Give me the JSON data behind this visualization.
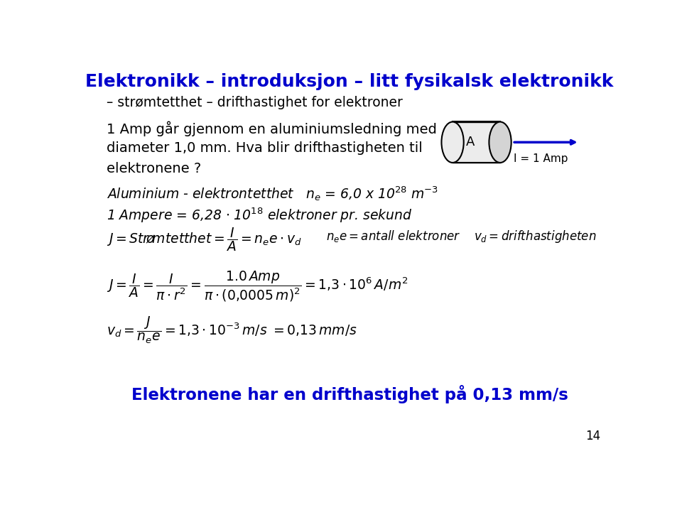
{
  "title": "Elektronikk – introduksjon – litt fysikalsk elektronikk",
  "title_color": "#0000CC",
  "subtitle": "– strømtetthet – drifthastighet for elektroner",
  "line1": "1 Amp går gjennom en aluminiumsledning med",
  "line2": "diameter 1,0 mm. Hva blir drifthastigheten til",
  "line3": "elektronene ?",
  "bg_color": "#FFFFFF",
  "text_color": "#000000",
  "blue_color": "#0000CC",
  "page_number": "14",
  "conclusion": "Elektronene har en drifthastighet på 0,13 mm/s"
}
